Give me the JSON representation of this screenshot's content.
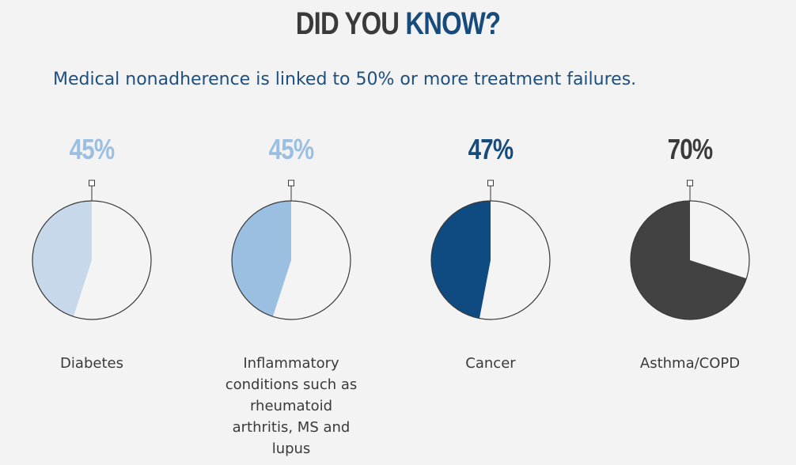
{
  "header": {
    "title_part1": "DID YOU ",
    "title_accent": "KNOW?",
    "subtitle": "Medical nonadherence is linked to 50% or more treatment failures."
  },
  "colors": {
    "accent": "#174b7c",
    "dark": "#3a3a3a",
    "light_blue": "#c6d8ea",
    "mid_blue": "#9bbfe0",
    "navy": "#0f4a80",
    "charcoal": "#424242",
    "pie_bg": "#f4f4f4"
  },
  "chart_data": [
    {
      "type": "pie",
      "label": "Diabetes",
      "value_text": "45%",
      "value": 45,
      "color": "#c6d8ea",
      "text_color": "#9bbfe0"
    },
    {
      "type": "pie",
      "label": "Inflammatory conditions such as rheumatoid arthritis, MS and lupus",
      "value_text": "45%",
      "value": 45,
      "color": "#9bbfe0",
      "text_color": "#9bbfe0"
    },
    {
      "type": "pie",
      "label": "Cancer",
      "value_text": "47%",
      "value": 47,
      "color": "#0f4a80",
      "text_color": "#174b7c"
    },
    {
      "type": "pie",
      "label": "Asthma/COPD",
      "value_text": "70%",
      "value": 70,
      "color": "#424242",
      "text_color": "#3a3a3a"
    }
  ]
}
